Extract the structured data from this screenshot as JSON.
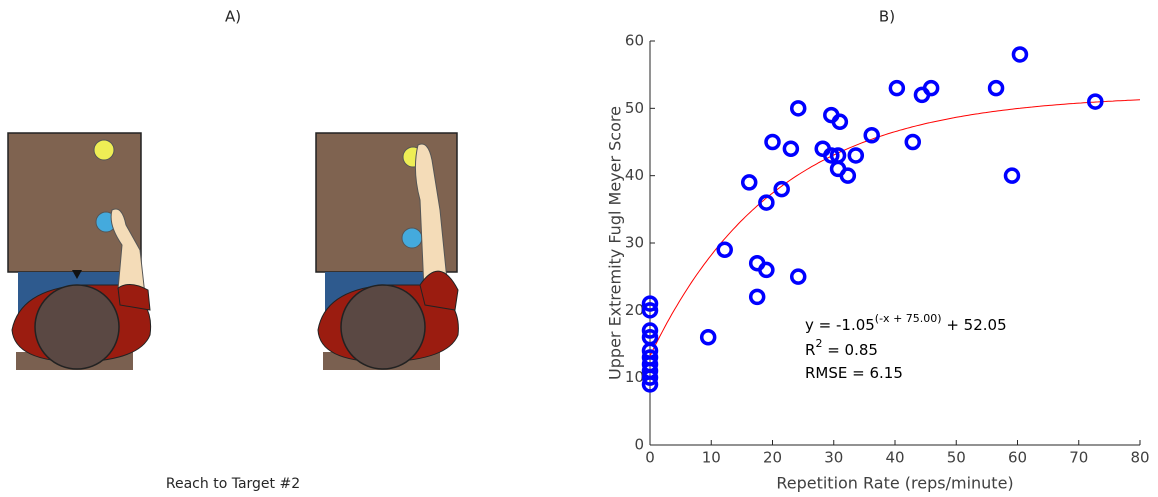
{
  "panel_a": {
    "label": "A)",
    "caption": "Reach to Target #2"
  },
  "chart_data": {
    "type": "scatter",
    "title": "B)",
    "x_label": "Repetition Rate (reps/minute)",
    "y_label": "Upper Extremity Fugl Meyer Score",
    "xlim": [
      0,
      80
    ],
    "xticks": [
      0,
      10,
      20,
      30,
      40,
      50,
      60,
      70,
      80
    ],
    "ylim": [
      0,
      60
    ],
    "yticks": [
      0,
      10,
      20,
      30,
      40,
      50,
      60
    ],
    "color": "#0000ff",
    "grid": false,
    "x": [
      0,
      0,
      0,
      0,
      0,
      0,
      0,
      0,
      0,
      0,
      9.5,
      12.2,
      17.5,
      17.5,
      19,
      16.2,
      19,
      20,
      21.5,
      23,
      24.2,
      24.2,
      28.2,
      29.6,
      30.7,
      30.7,
      32.3,
      33.6,
      29.6,
      31,
      36.2,
      40.3,
      42.9,
      44.4,
      45.9,
      56.5,
      59.1,
      60.4,
      72.7
    ],
    "y": [
      21,
      20,
      17,
      16,
      14,
      13,
      12,
      11,
      10,
      9,
      16,
      29,
      22,
      27,
      26,
      39,
      36,
      45,
      38,
      44,
      50,
      25,
      44,
      43,
      43,
      41,
      40,
      43,
      49,
      48,
      46,
      53,
      45,
      52,
      53,
      53,
      40,
      58,
      51
    ],
    "fit": {
      "base": 1.05,
      "shift": 75,
      "offset": 52.05,
      "color": "#ff0000"
    },
    "annotations": {
      "equation": "y = -1.05",
      "equation_exponent": "(-x + 75.00)",
      "equation_tail": " + 52.05",
      "r2_base": "R",
      "r2_exponent": "2",
      "r2_tail": " = 0.85",
      "rmse": "RMSE = 6.15"
    }
  }
}
